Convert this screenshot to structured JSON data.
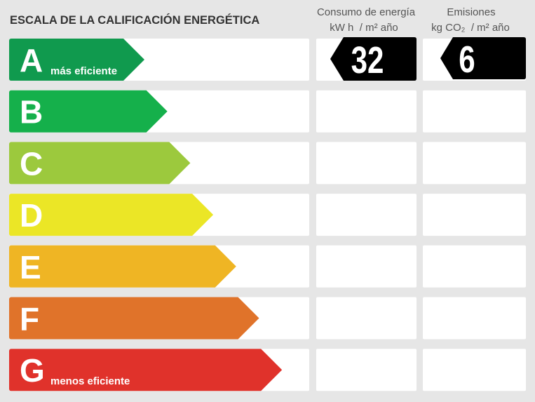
{
  "title": "ESCALA DE LA CALIFICACIÓN ENERGÉTICA",
  "columns": [
    {
      "title": "Consumo de energía",
      "unit": "kW h  / m² año",
      "value": "32"
    },
    {
      "title": "Emisiones",
      "unit": "kg CO₂  / m² año",
      "value": "6"
    }
  ],
  "classes": [
    {
      "letter": "A",
      "note": "más eficiente",
      "color": "#109a4e"
    },
    {
      "letter": "B",
      "color": "#15b04b"
    },
    {
      "letter": "C",
      "color": "#9cc93d"
    },
    {
      "letter": "D",
      "color": "#ebe626"
    },
    {
      "letter": "E",
      "color": "#efb524"
    },
    {
      "letter": "F",
      "color": "#e0732a"
    },
    {
      "letter": "G",
      "note": "menos eficiente",
      "color": "#e0322b"
    }
  ]
}
